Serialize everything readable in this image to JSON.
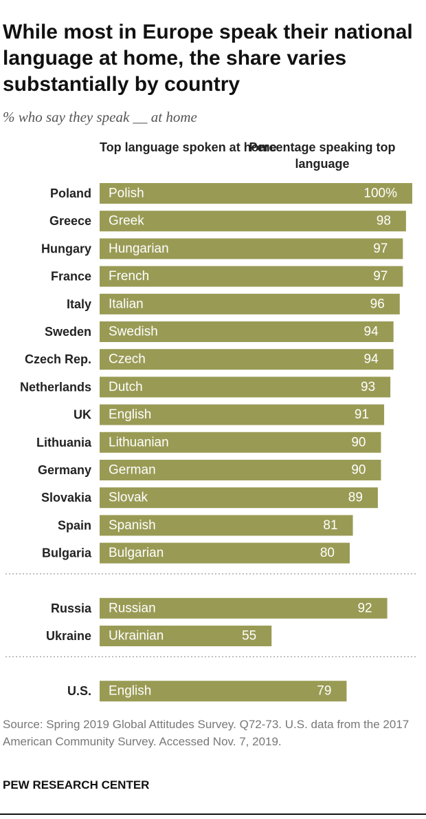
{
  "title": "While most in Europe speak their national language at home, the share varies substantially by country",
  "subtitle": "% who say they speak __ at home",
  "column_headers": {
    "language": "Top language spoken at home",
    "percent": "Percentage speaking top language"
  },
  "colors": {
    "bar": "#999b55",
    "bar_text": "#ffffff",
    "divider": "#aaaaaa"
  },
  "chart_data": {
    "type": "bar",
    "orientation": "horizontal",
    "xlim": [
      0,
      100
    ],
    "groups": [
      {
        "rows": [
          {
            "country": "Poland",
            "language": "Polish",
            "value": 100,
            "label": "100%"
          },
          {
            "country": "Greece",
            "language": "Greek",
            "value": 98,
            "label": "98"
          },
          {
            "country": "Hungary",
            "language": "Hungarian",
            "value": 97,
            "label": "97"
          },
          {
            "country": "France",
            "language": "French",
            "value": 97,
            "label": "97"
          },
          {
            "country": "Italy",
            "language": "Italian",
            "value": 96,
            "label": "96"
          },
          {
            "country": "Sweden",
            "language": "Swedish",
            "value": 94,
            "label": "94"
          },
          {
            "country": "Czech Rep.",
            "language": "Czech",
            "value": 94,
            "label": "94"
          },
          {
            "country": "Netherlands",
            "language": "Dutch",
            "value": 93,
            "label": "93"
          },
          {
            "country": "UK",
            "language": "English",
            "value": 91,
            "label": "91"
          },
          {
            "country": "Lithuania",
            "language": "Lithuanian",
            "value": 90,
            "label": "90"
          },
          {
            "country": "Germany",
            "language": "German",
            "value": 90,
            "label": "90"
          },
          {
            "country": "Slovakia",
            "language": "Slovak",
            "value": 89,
            "label": "89"
          },
          {
            "country": "Spain",
            "language": "Spanish",
            "value": 81,
            "label": "81"
          },
          {
            "country": "Bulgaria",
            "language": "Bulgarian",
            "value": 80,
            "label": "80"
          }
        ]
      },
      {
        "rows": [
          {
            "country": "Russia",
            "language": "Russian",
            "value": 92,
            "label": "92"
          },
          {
            "country": "Ukraine",
            "language": "Ukrainian",
            "value": 55,
            "label": "55"
          }
        ]
      },
      {
        "rows": [
          {
            "country": "U.S.",
            "language": "English",
            "value": 79,
            "label": "79"
          }
        ]
      }
    ]
  },
  "source": "Source: Spring 2019 Global Attitudes Survey. Q72-73. U.S. data from the 2017 American Community Survey. Accessed Nov. 7, 2019.",
  "brand": "PEW RESEARCH CENTER"
}
